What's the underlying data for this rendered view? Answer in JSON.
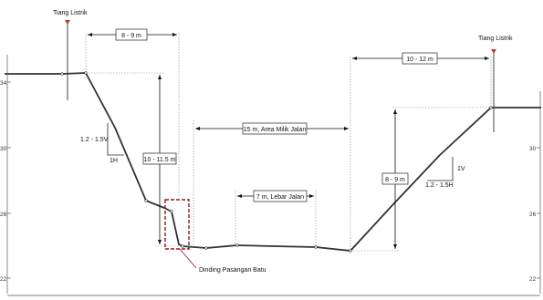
{
  "labels": {
    "pole_left": "Tiang Listrik",
    "pole_right": "Tiang Listrik",
    "dim_top_left": "8 - 9 m",
    "dim_top_right": "10 - 12 m",
    "dim_height_left": "10 - 11.5 m",
    "dim_height_right": "8 - 9 m",
    "dim_row": "15 m, Area Milik Jalan",
    "dim_road": "7 m, Lebar Jalan",
    "slope_left_v": "1.2 - 1.5V",
    "slope_left_h": "1H",
    "slope_right_v": "1V",
    "slope_right_h": "1.2 - 1.5H",
    "wall_callout": "Dinding Pasangan Batu"
  },
  "axis_ticks_left": [
    "34",
    "30",
    "26",
    "22"
  ],
  "axis_ticks_right": [
    "30",
    "26",
    "22"
  ],
  "colors": {
    "ground": "#333333",
    "wall_box": "#8b1a1a",
    "pole_marker": "#c0392b"
  }
}
